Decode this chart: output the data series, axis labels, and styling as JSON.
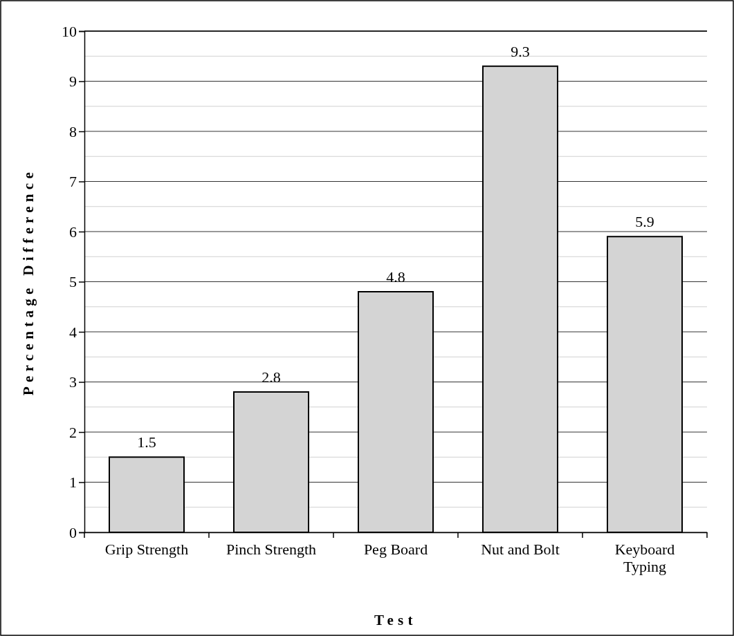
{
  "chart_data": {
    "type": "bar",
    "xlabel": "Test",
    "ylabel": "Percentage Difference",
    "categories": [
      "Grip Strength",
      "Pinch Strength",
      "Peg Board",
      "Nut and Bolt",
      "Keyboard Typing"
    ],
    "values": [
      1.5,
      2.8,
      4.8,
      9.3,
      5.9
    ],
    "color": "#d4d4d4",
    "ylim": [
      0,
      10
    ],
    "yticks": [
      0,
      1,
      2,
      3,
      4,
      5,
      6,
      7,
      8,
      9,
      10
    ],
    "grid": "y",
    "data_labels": true
  }
}
